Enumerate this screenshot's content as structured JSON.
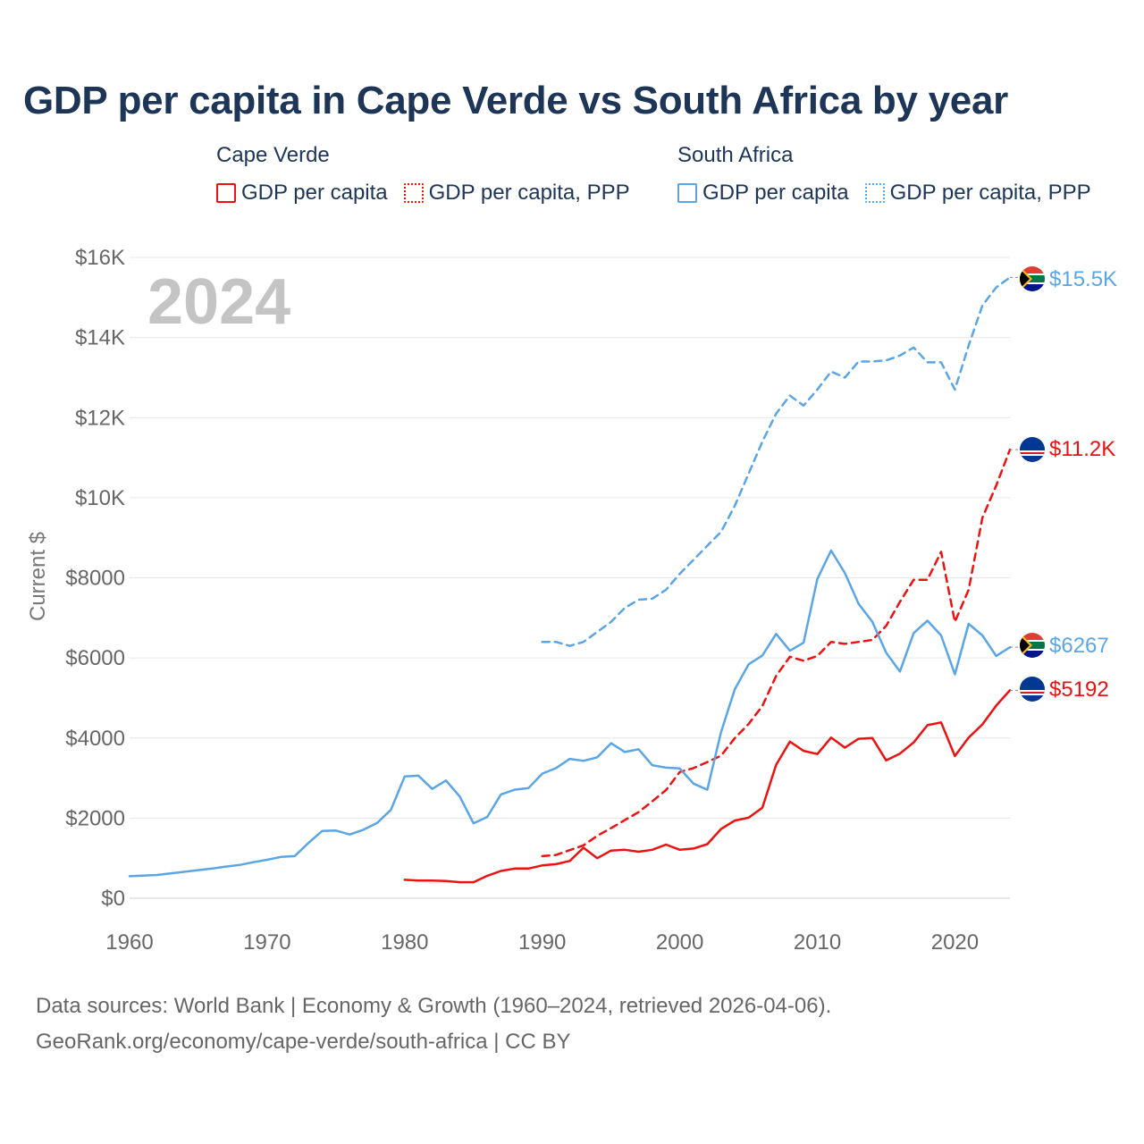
{
  "title": "GDP per capita in Cape Verde vs South Africa by year",
  "legend": {
    "groups": [
      {
        "name": "Cape Verde",
        "color": "#ee1111",
        "items": [
          {
            "label": "GDP per capita",
            "style": "solid"
          },
          {
            "label": "GDP per capita, PPP",
            "style": "dotted"
          }
        ]
      },
      {
        "name": "South Africa",
        "color": "#5aa5e6",
        "items": [
          {
            "label": "GDP per capita",
            "style": "solid"
          },
          {
            "label": "GDP per capita, PPP",
            "style": "dotted"
          }
        ]
      }
    ]
  },
  "year_label": "2024",
  "footer": {
    "line1": "Data sources: World Bank | Economy & Growth (1960–2024, retrieved 2026-04-06).",
    "line2": "GeoRank.org/economy/cape-verde/south-africa | CC BY"
  },
  "chart_data": {
    "type": "line",
    "title": "GDP per capita in Cape Verde vs South Africa by year",
    "xlabel": "",
    "ylabel": "Current $",
    "xlim": [
      1960,
      2024
    ],
    "ylim": [
      0,
      16000
    ],
    "x_ticks": [
      1960,
      1970,
      1980,
      1990,
      2000,
      2010,
      2020
    ],
    "y_ticks": [
      0,
      2000,
      4000,
      6000,
      8000,
      10000,
      12000,
      14000,
      16000
    ],
    "y_tick_labels": [
      "$0",
      "$2000",
      "$4000",
      "$6000",
      "$8000",
      "$10K",
      "$12K",
      "$14K",
      "$16K"
    ],
    "grid": true,
    "series": [
      {
        "name": "South Africa GDP per capita, PPP",
        "country": "South Africa",
        "color": "#5aa5e6",
        "dashed": true,
        "end_label": "$15.5K",
        "x": [
          1990,
          1991,
          1992,
          1993,
          1994,
          1995,
          1996,
          1997,
          1998,
          1999,
          2000,
          2001,
          2002,
          2003,
          2004,
          2005,
          2006,
          2007,
          2008,
          2009,
          2010,
          2011,
          2012,
          2013,
          2014,
          2015,
          2016,
          2017,
          2018,
          2019,
          2020,
          2021,
          2022,
          2023,
          2024
        ],
        "values": [
          6400,
          6400,
          6300,
          6400,
          6650,
          6900,
          7250,
          7450,
          7480,
          7700,
          8100,
          8450,
          8800,
          9150,
          9800,
          10600,
          11400,
          12100,
          12550,
          12300,
          12700,
          13150,
          13000,
          13400,
          13400,
          13430,
          13550,
          13750,
          13380,
          13380,
          12700,
          13800,
          14800,
          15250,
          15500
        ]
      },
      {
        "name": "Cape Verde GDP per capita, PPP",
        "country": "Cape Verde",
        "color": "#ee1111",
        "dashed": true,
        "end_label": "$11.2K",
        "x": [
          1990,
          1991,
          1992,
          1993,
          1994,
          1995,
          1996,
          1997,
          1998,
          1999,
          2000,
          2001,
          2002,
          2003,
          2004,
          2005,
          2006,
          2007,
          2008,
          2009,
          2010,
          2011,
          2012,
          2013,
          2014,
          2015,
          2016,
          2017,
          2018,
          2019,
          2020,
          2021,
          2022,
          2023,
          2024
        ],
        "values": [
          1050,
          1080,
          1200,
          1320,
          1560,
          1750,
          1950,
          2150,
          2420,
          2700,
          3150,
          3250,
          3400,
          3560,
          4000,
          4350,
          4800,
          5550,
          6030,
          5930,
          6050,
          6400,
          6350,
          6400,
          6450,
          6800,
          7400,
          7950,
          7950,
          8650,
          6900,
          7700,
          9500,
          10300,
          11200
        ]
      },
      {
        "name": "South Africa GDP per capita",
        "country": "South Africa",
        "color": "#5aa5e6",
        "dashed": false,
        "end_label": "$6267",
        "x": [
          1960,
          1962,
          1964,
          1966,
          1967,
          1968,
          1969,
          1970,
          1971,
          1972,
          1973,
          1974,
          1975,
          1976,
          1977,
          1978,
          1979,
          1980,
          1981,
          1982,
          1983,
          1984,
          1985,
          1986,
          1987,
          1988,
          1989,
          1990,
          1991,
          1992,
          1993,
          1994,
          1995,
          1996,
          1997,
          1998,
          1999,
          2000,
          2001,
          2002,
          2003,
          2004,
          2005,
          2006,
          2007,
          2008,
          2009,
          2010,
          2011,
          2012,
          2013,
          2014,
          2015,
          2016,
          2017,
          2018,
          2019,
          2020,
          2021,
          2022,
          2023,
          2024
        ],
        "values": [
          550,
          580,
          660,
          740,
          790,
          830,
          900,
          960,
          1030,
          1050,
          1380,
          1680,
          1690,
          1590,
          1710,
          1880,
          2210,
          3040,
          3060,
          2730,
          2940,
          2540,
          1870,
          2030,
          2590,
          2710,
          2750,
          3110,
          3250,
          3480,
          3430,
          3520,
          3870,
          3650,
          3720,
          3320,
          3260,
          3240,
          2860,
          2710,
          4150,
          5220,
          5840,
          6060,
          6600,
          6180,
          6380,
          7970,
          8680,
          8120,
          7350,
          6900,
          6130,
          5660,
          6620,
          6930,
          6560,
          5590,
          6850,
          6560,
          6050,
          6267
        ]
      },
      {
        "name": "Cape Verde GDP per capita",
        "country": "Cape Verde",
        "color": "#ee1111",
        "dashed": false,
        "end_label": "$5192",
        "x": [
          1980,
          1981,
          1982,
          1983,
          1984,
          1985,
          1986,
          1987,
          1988,
          1989,
          1990,
          1991,
          1992,
          1993,
          1994,
          1995,
          1996,
          1997,
          1998,
          1999,
          2000,
          2001,
          2002,
          2003,
          2004,
          2005,
          2006,
          2007,
          2008,
          2009,
          2010,
          2011,
          2012,
          2013,
          2014,
          2015,
          2016,
          2017,
          2018,
          2019,
          2020,
          2021,
          2022,
          2023,
          2024
        ],
        "values": [
          460,
          440,
          440,
          430,
          400,
          400,
          560,
          680,
          740,
          740,
          820,
          850,
          930,
          1260,
          1000,
          1190,
          1210,
          1160,
          1210,
          1340,
          1210,
          1240,
          1350,
          1730,
          1940,
          2010,
          2260,
          3330,
          3910,
          3680,
          3600,
          4010,
          3760,
          3980,
          4000,
          3440,
          3610,
          3890,
          4320,
          4390,
          3550,
          4010,
          4340,
          4810,
          5192
        ]
      }
    ]
  }
}
